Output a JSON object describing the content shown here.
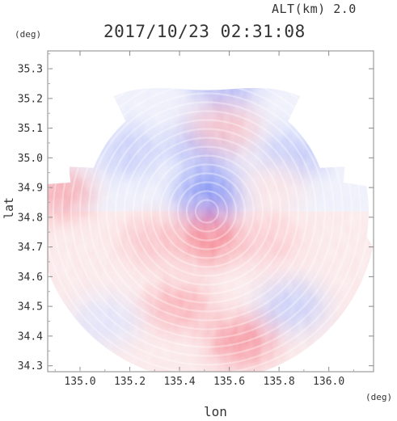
{
  "chart_data": {
    "type": "heatmap",
    "title": "2017/10/23 02:31:08",
    "subtitle": "ALT(km) 2.0",
    "xlabel": "lon",
    "ylabel": "lat",
    "xunit": "(deg)",
    "yunit": "(deg)",
    "xlim": [
      134.87,
      136.18
    ],
    "ylim": [
      34.28,
      35.36
    ],
    "x_ticks": [
      135.0,
      135.2,
      135.4,
      135.6,
      135.8,
      136.0
    ],
    "x_tick_labels": [
      "135.0",
      "135.2",
      "135.4",
      "135.6",
      "135.8",
      "136.0"
    ],
    "y_ticks": [
      34.3,
      34.4,
      34.5,
      34.6,
      34.7,
      34.8,
      34.9,
      35.0,
      35.1,
      35.2,
      35.3
    ],
    "y_tick_labels": [
      "34.3",
      "34.4",
      "34.5",
      "34.6",
      "34.7",
      "34.8",
      "34.9",
      "35.0",
      "35.1",
      "35.2",
      "35.3"
    ],
    "grid": false,
    "colormap": {
      "negative": "#5a6ef0",
      "zero": "#ffffff",
      "positive": "#f04a5a"
    },
    "radar_center": {
      "lon": 135.51,
      "lat": 34.82
    },
    "field_regions": [
      {
        "lon": 135.51,
        "lat": 35.05,
        "value": -0.55
      },
      {
        "lon": 135.52,
        "lat": 34.88,
        "value": -0.75
      },
      {
        "lon": 135.2,
        "lat": 35.02,
        "value": -0.35
      },
      {
        "lon": 135.85,
        "lat": 35.0,
        "value": -0.4
      },
      {
        "lon": 135.58,
        "lat": 35.25,
        "value": -0.5
      },
      {
        "lon": 135.58,
        "lat": 35.1,
        "value": 0.35
      },
      {
        "lon": 135.52,
        "lat": 34.73,
        "value": 0.7
      },
      {
        "lon": 135.75,
        "lat": 34.72,
        "value": 0.3
      },
      {
        "lon": 135.3,
        "lat": 34.72,
        "value": 0.35
      },
      {
        "lon": 135.4,
        "lat": 34.5,
        "value": 0.45
      },
      {
        "lon": 135.65,
        "lat": 34.38,
        "value": 0.6
      },
      {
        "lon": 135.1,
        "lat": 34.45,
        "value": -0.2
      },
      {
        "lon": 135.85,
        "lat": 34.5,
        "value": -0.35
      },
      {
        "lon": 134.92,
        "lat": 34.88,
        "value": 0.5
      },
      {
        "lon": 135.78,
        "lat": 34.9,
        "value": 0.15
      }
    ]
  }
}
